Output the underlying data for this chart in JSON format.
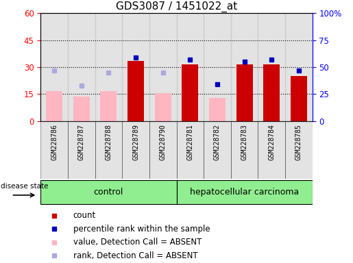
{
  "title": "GDS3087 / 1451022_at",
  "samples": [
    "GSM228786",
    "GSM228787",
    "GSM228788",
    "GSM228789",
    "GSM228790",
    "GSM228781",
    "GSM228782",
    "GSM228783",
    "GSM228784",
    "GSM228785"
  ],
  "absent_value": [
    16.5,
    13.5,
    16.5,
    null,
    15.5,
    null,
    13.0,
    null,
    null,
    null
  ],
  "absent_rank_pct": [
    47,
    33,
    45,
    null,
    45,
    null,
    null,
    null,
    null,
    null
  ],
  "present_value": [
    null,
    null,
    null,
    33.5,
    null,
    31.5,
    null,
    31.5,
    31.5,
    25.0
  ],
  "present_rank_pct": [
    null,
    null,
    null,
    59,
    null,
    57,
    34,
    55,
    57,
    47
  ],
  "left_ylim": [
    0,
    60
  ],
  "right_ylim": [
    0,
    100
  ],
  "left_yticks": [
    0,
    15,
    30,
    45,
    60
  ],
  "left_yticklabels": [
    "0",
    "15",
    "30",
    "45",
    "60"
  ],
  "right_yticks": [
    0,
    25,
    50,
    75,
    100
  ],
  "right_yticklabels": [
    "0",
    "25",
    "50",
    "75",
    "100%"
  ],
  "absent_bar_color": "#FFB6C1",
  "present_bar_color": "#CC0000",
  "absent_rank_color": "#AAAADD",
  "present_rank_color": "#0000BB",
  "gray_col_color": "#C8C8C8",
  "green_control": "#90EE90",
  "green_cancer": "#90EE90",
  "title_fontsize": 11,
  "tick_fontsize": 8.5,
  "label_fontsize": 8
}
